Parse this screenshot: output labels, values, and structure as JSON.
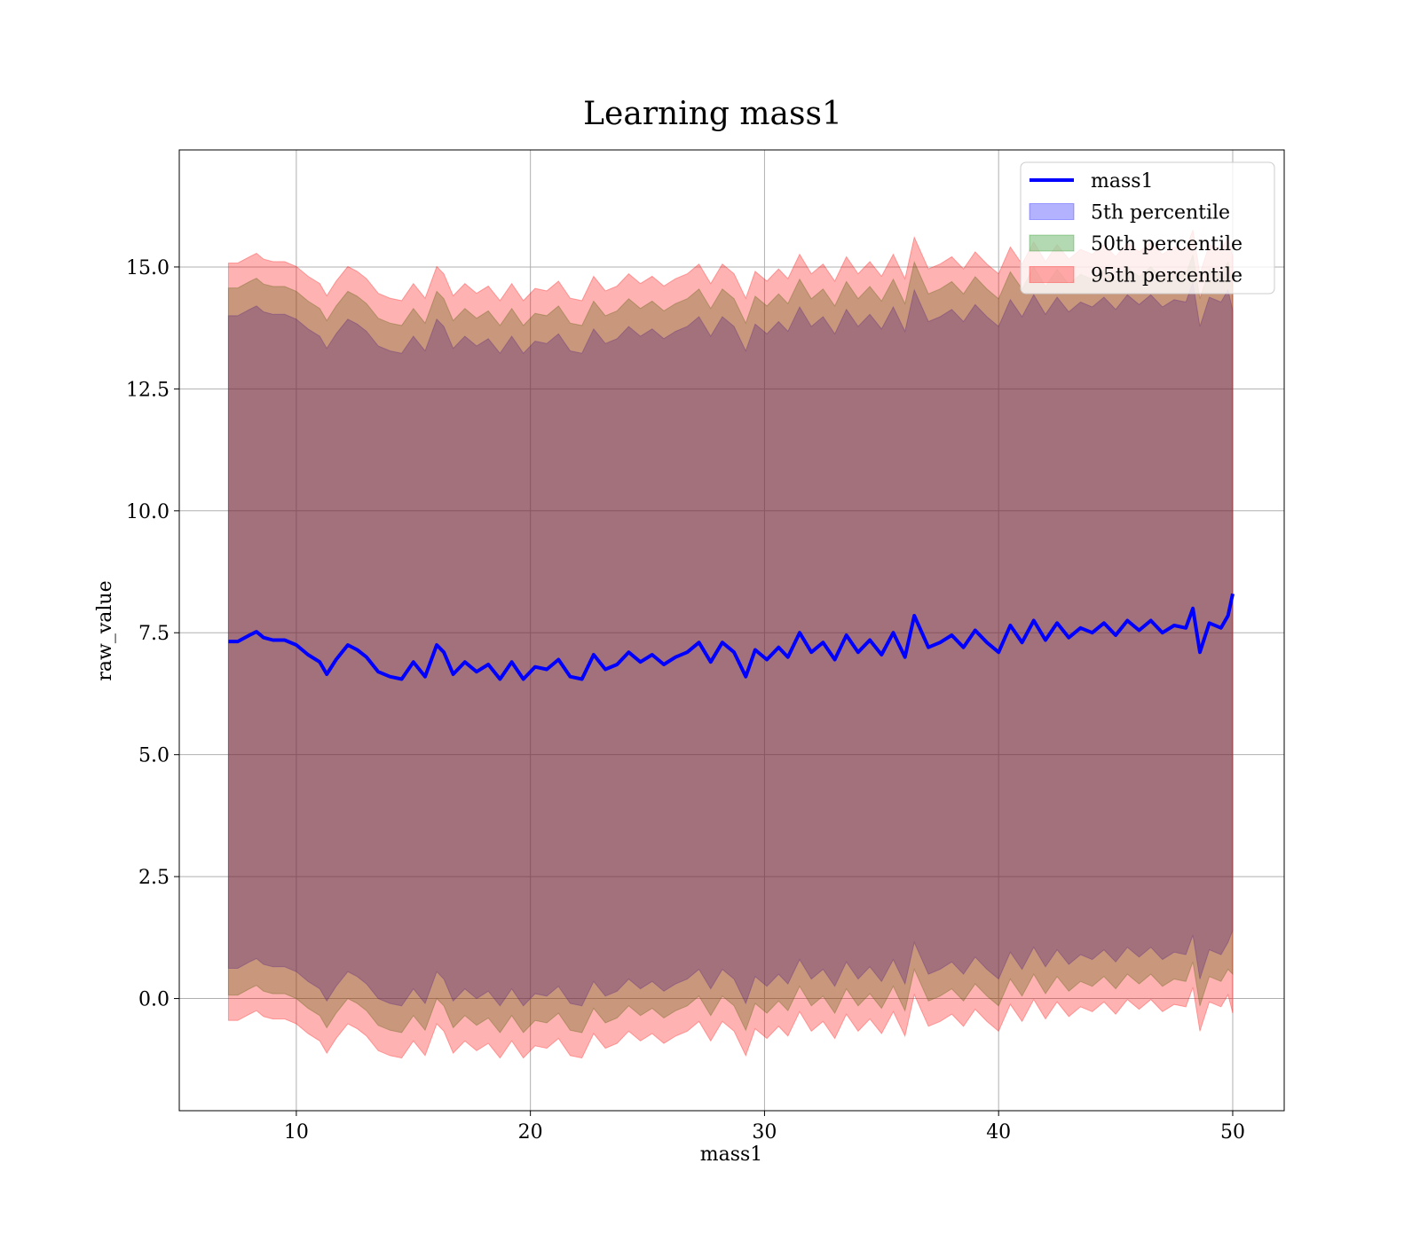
{
  "chart_data": {
    "type": "line",
    "title": "Learning mass1",
    "xlabel": "mass1",
    "ylabel": "raw_value",
    "xlim": [
      5,
      52.2
    ],
    "ylim": [
      -2.3,
      17.4
    ],
    "xticks": [
      10,
      20,
      30,
      40,
      50
    ],
    "yticks": [
      0.0,
      2.5,
      5.0,
      7.5,
      10.0,
      12.5,
      15.0
    ],
    "xtick_labels": [
      "10",
      "20",
      "30",
      "40",
      "50"
    ],
    "ytick_labels": [
      "0.0",
      "2.5",
      "5.0",
      "7.5",
      "10.0",
      "12.5",
      "15.0"
    ],
    "grid": true,
    "legend_position": "top-right",
    "legend": [
      {
        "label": "mass1",
        "kind": "line",
        "color": "#0000ff"
      },
      {
        "label": "5th percentile",
        "kind": "band",
        "color": "#0000ff"
      },
      {
        "label": "50th percentile",
        "kind": "band",
        "color": "#008000"
      },
      {
        "label": "95th percentile",
        "kind": "band",
        "color": "#ff0000"
      }
    ],
    "x": [
      7.1,
      7.5,
      8.0,
      8.3,
      8.6,
      9.0,
      9.5,
      10.0,
      10.5,
      11.0,
      11.3,
      11.7,
      12.2,
      12.6,
      13.0,
      13.5,
      14.0,
      14.5,
      15.0,
      15.5,
      16.0,
      16.3,
      16.7,
      17.2,
      17.7,
      18.2,
      18.7,
      19.2,
      19.7,
      20.2,
      20.7,
      21.2,
      21.7,
      22.2,
      22.7,
      23.2,
      23.7,
      24.2,
      24.7,
      25.2,
      25.7,
      26.2,
      26.7,
      27.2,
      27.7,
      28.2,
      28.7,
      29.2,
      29.6,
      30.1,
      30.6,
      31.0,
      31.5,
      32.0,
      32.5,
      33.0,
      33.5,
      34.0,
      34.5,
      35.0,
      35.5,
      36.0,
      36.4,
      37.0,
      37.5,
      38.0,
      38.5,
      39.0,
      39.5,
      40.0,
      40.5,
      41.0,
      41.5,
      42.0,
      42.5,
      43.0,
      43.5,
      44.0,
      44.5,
      45.0,
      45.5,
      46.0,
      46.5,
      47.0,
      47.5,
      48.0,
      48.3,
      48.6,
      49.0,
      49.5,
      49.8,
      50.0
    ],
    "series": [
      {
        "name": "mass1",
        "color": "#0000ff",
        "values": [
          7.32,
          7.32,
          7.45,
          7.52,
          7.4,
          7.35,
          7.35,
          7.25,
          7.05,
          6.9,
          6.65,
          6.95,
          7.25,
          7.15,
          7.0,
          6.7,
          6.6,
          6.55,
          6.9,
          6.6,
          7.25,
          7.1,
          6.65,
          6.9,
          6.7,
          6.85,
          6.55,
          6.9,
          6.55,
          6.8,
          6.75,
          6.95,
          6.6,
          6.55,
          7.05,
          6.75,
          6.85,
          7.1,
          6.9,
          7.05,
          6.85,
          7.0,
          7.1,
          7.3,
          6.9,
          7.3,
          7.1,
          6.6,
          7.15,
          6.95,
          7.2,
          7.0,
          7.5,
          7.1,
          7.3,
          6.95,
          7.45,
          7.1,
          7.35,
          7.05,
          7.5,
          7.0,
          7.85,
          7.2,
          7.3,
          7.45,
          7.2,
          7.55,
          7.3,
          7.1,
          7.65,
          7.3,
          7.75,
          7.35,
          7.7,
          7.4,
          7.6,
          7.5,
          7.7,
          7.45,
          7.75,
          7.55,
          7.75,
          7.5,
          7.65,
          7.6,
          8.0,
          7.1,
          7.7,
          7.6,
          7.85,
          8.3
        ]
      },
      {
        "name": "5th percentile",
        "color": "#0000ff",
        "lower": [
          0.62,
          0.62,
          0.75,
          0.82,
          0.7,
          0.65,
          0.65,
          0.55,
          0.35,
          0.2,
          -0.05,
          0.25,
          0.55,
          0.45,
          0.3,
          0.0,
          -0.1,
          -0.15,
          0.2,
          -0.1,
          0.55,
          0.4,
          -0.05,
          0.2,
          0.0,
          0.15,
          -0.15,
          0.2,
          -0.15,
          0.1,
          0.05,
          0.25,
          -0.1,
          -0.15,
          0.35,
          0.05,
          0.15,
          0.4,
          0.2,
          0.35,
          0.15,
          0.3,
          0.4,
          0.6,
          0.2,
          0.6,
          0.4,
          -0.1,
          0.45,
          0.25,
          0.5,
          0.3,
          0.8,
          0.4,
          0.6,
          0.25,
          0.75,
          0.4,
          0.65,
          0.35,
          0.8,
          0.3,
          1.15,
          0.5,
          0.6,
          0.75,
          0.5,
          0.85,
          0.6,
          0.4,
          0.95,
          0.6,
          1.05,
          0.65,
          1.0,
          0.7,
          0.9,
          0.8,
          1.0,
          0.75,
          1.05,
          0.85,
          1.05,
          0.8,
          0.95,
          0.9,
          1.3,
          0.4,
          1.0,
          0.9,
          1.15,
          1.4
        ],
        "upper": [
          14.0,
          14.0,
          14.13,
          14.2,
          14.08,
          14.03,
          14.03,
          13.93,
          13.73,
          13.58,
          13.33,
          13.63,
          13.93,
          13.83,
          13.68,
          13.38,
          13.28,
          13.23,
          13.58,
          13.28,
          13.93,
          13.78,
          13.33,
          13.58,
          13.38,
          13.53,
          13.23,
          13.58,
          13.23,
          13.48,
          13.43,
          13.63,
          13.28,
          13.23,
          13.73,
          13.43,
          13.53,
          13.78,
          13.58,
          13.73,
          13.53,
          13.68,
          13.78,
          13.98,
          13.58,
          13.98,
          13.78,
          13.28,
          13.83,
          13.63,
          13.88,
          13.68,
          14.18,
          13.78,
          13.98,
          13.63,
          14.13,
          13.78,
          14.03,
          13.73,
          14.18,
          13.68,
          14.53,
          13.88,
          13.98,
          14.13,
          13.88,
          14.23,
          13.98,
          13.78,
          14.33,
          13.98,
          14.43,
          14.03,
          14.38,
          14.08,
          14.28,
          14.18,
          14.38,
          14.13,
          14.43,
          14.23,
          14.43,
          14.18,
          14.33,
          14.28,
          14.68,
          13.78,
          14.38,
          14.28,
          14.53,
          14.1
        ]
      },
      {
        "name": "50th percentile",
        "color": "#008000",
        "lower": [
          0.07,
          0.07,
          0.2,
          0.27,
          0.15,
          0.1,
          0.1,
          0.0,
          -0.2,
          -0.35,
          -0.6,
          -0.3,
          0.0,
          -0.1,
          -0.25,
          -0.55,
          -0.65,
          -0.7,
          -0.35,
          -0.65,
          0.0,
          -0.15,
          -0.6,
          -0.35,
          -0.55,
          -0.4,
          -0.7,
          -0.35,
          -0.7,
          -0.45,
          -0.5,
          -0.3,
          -0.65,
          -0.7,
          -0.2,
          -0.5,
          -0.4,
          -0.15,
          -0.35,
          -0.2,
          -0.4,
          -0.25,
          -0.15,
          0.05,
          -0.35,
          0.05,
          -0.15,
          -0.65,
          -0.1,
          -0.3,
          -0.05,
          -0.25,
          0.25,
          -0.15,
          0.05,
          -0.3,
          0.2,
          -0.15,
          0.1,
          -0.2,
          0.25,
          -0.25,
          0.6,
          -0.05,
          0.05,
          0.2,
          -0.05,
          0.3,
          0.05,
          -0.15,
          0.4,
          0.05,
          0.5,
          0.1,
          0.45,
          0.15,
          0.35,
          0.25,
          0.45,
          0.2,
          0.5,
          0.3,
          0.5,
          0.25,
          0.4,
          0.35,
          0.75,
          -0.15,
          0.45,
          0.35,
          0.6,
          0.5
        ],
        "upper": [
          14.57,
          14.57,
          14.7,
          14.77,
          14.65,
          14.6,
          14.6,
          14.5,
          14.3,
          14.15,
          13.9,
          14.2,
          14.5,
          14.4,
          14.25,
          13.95,
          13.85,
          13.8,
          14.15,
          13.85,
          14.5,
          14.35,
          13.9,
          14.15,
          13.95,
          14.1,
          13.8,
          14.15,
          13.8,
          14.05,
          14.0,
          14.2,
          13.85,
          13.8,
          14.3,
          14.0,
          14.1,
          14.35,
          14.15,
          14.3,
          14.1,
          14.25,
          14.35,
          14.55,
          14.15,
          14.55,
          14.35,
          13.85,
          14.4,
          14.2,
          14.45,
          14.25,
          14.75,
          14.35,
          14.55,
          14.2,
          14.7,
          14.35,
          14.6,
          14.3,
          14.75,
          14.25,
          15.1,
          14.45,
          14.55,
          14.7,
          14.45,
          14.8,
          14.55,
          14.35,
          14.9,
          14.55,
          15.0,
          14.6,
          14.95,
          14.65,
          14.85,
          14.75,
          14.95,
          14.7,
          15.0,
          14.8,
          15.0,
          14.75,
          14.9,
          14.85,
          15.25,
          14.35,
          14.95,
          14.85,
          15.1,
          14.6
        ]
      },
      {
        "name": "95th percentile",
        "color": "#ff0000",
        "lower": [
          -0.45,
          -0.45,
          -0.32,
          -0.25,
          -0.37,
          -0.42,
          -0.42,
          -0.52,
          -0.72,
          -0.87,
          -1.12,
          -0.82,
          -0.52,
          -0.62,
          -0.77,
          -1.07,
          -1.17,
          -1.22,
          -0.87,
          -1.17,
          -0.52,
          -0.67,
          -1.12,
          -0.87,
          -1.07,
          -0.92,
          -1.22,
          -0.87,
          -1.22,
          -0.97,
          -1.02,
          -0.82,
          -1.17,
          -1.22,
          -0.72,
          -1.02,
          -0.92,
          -0.67,
          -0.87,
          -0.72,
          -0.92,
          -0.77,
          -0.67,
          -0.47,
          -0.87,
          -0.47,
          -0.67,
          -1.17,
          -0.62,
          -0.82,
          -0.57,
          -0.77,
          -0.27,
          -0.67,
          -0.47,
          -0.82,
          -0.32,
          -0.67,
          -0.42,
          -0.72,
          -0.27,
          -0.77,
          0.08,
          -0.57,
          -0.47,
          -0.32,
          -0.57,
          -0.22,
          -0.47,
          -0.67,
          -0.12,
          -0.47,
          -0.02,
          -0.42,
          -0.07,
          -0.37,
          -0.17,
          -0.27,
          -0.07,
          -0.32,
          -0.02,
          -0.22,
          -0.02,
          -0.27,
          -0.12,
          -0.17,
          0.23,
          -0.67,
          -0.07,
          -0.17,
          0.08,
          -0.3
        ],
        "upper": [
          15.08,
          15.08,
          15.21,
          15.28,
          15.16,
          15.11,
          15.11,
          15.01,
          14.81,
          14.66,
          14.41,
          14.71,
          15.01,
          14.91,
          14.76,
          14.46,
          14.36,
          14.31,
          14.66,
          14.36,
          15.01,
          14.86,
          14.41,
          14.66,
          14.46,
          14.61,
          14.31,
          14.66,
          14.31,
          14.56,
          14.51,
          14.71,
          14.36,
          14.31,
          14.81,
          14.51,
          14.61,
          14.86,
          14.66,
          14.81,
          14.61,
          14.76,
          14.86,
          15.06,
          14.66,
          15.06,
          14.86,
          14.36,
          14.91,
          14.71,
          14.96,
          14.76,
          15.26,
          14.86,
          15.06,
          14.71,
          15.21,
          14.86,
          15.11,
          14.81,
          15.26,
          14.76,
          15.61,
          14.96,
          15.06,
          15.21,
          14.96,
          15.31,
          15.06,
          14.86,
          15.41,
          15.06,
          15.51,
          15.11,
          15.46,
          15.16,
          15.36,
          15.26,
          15.46,
          15.21,
          15.51,
          15.31,
          15.51,
          15.26,
          15.41,
          15.36,
          15.76,
          14.86,
          15.46,
          15.36,
          15.61,
          15.2
        ]
      }
    ]
  }
}
